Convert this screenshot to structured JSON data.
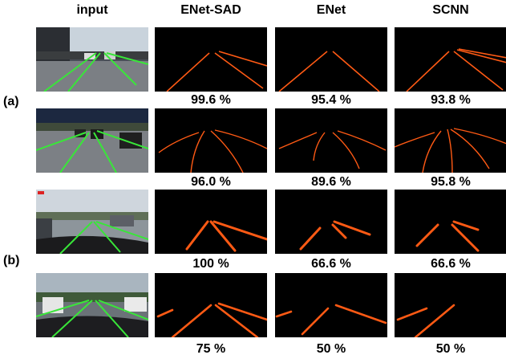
{
  "headers": [
    "input",
    "ENet-SAD",
    "ENet",
    "SCNN"
  ],
  "groups": [
    "(a)",
    "(a)",
    "(b)",
    "(b)"
  ],
  "rows": [
    {
      "scores": [
        "99.6 %",
        "95.4 %",
        "93.8 %"
      ]
    },
    {
      "scores": [
        "96.0 %",
        "89.6 %",
        "95.8 %"
      ]
    },
    {
      "scores": [
        "100 %",
        "66.6 %",
        "66.6 %"
      ]
    },
    {
      "scores": [
        "75 %",
        "50 %",
        "50 %"
      ]
    }
  ],
  "colors": {
    "lane_pred": "#ff5a14",
    "lane_gt": "#39e639",
    "background": "#000000"
  }
}
